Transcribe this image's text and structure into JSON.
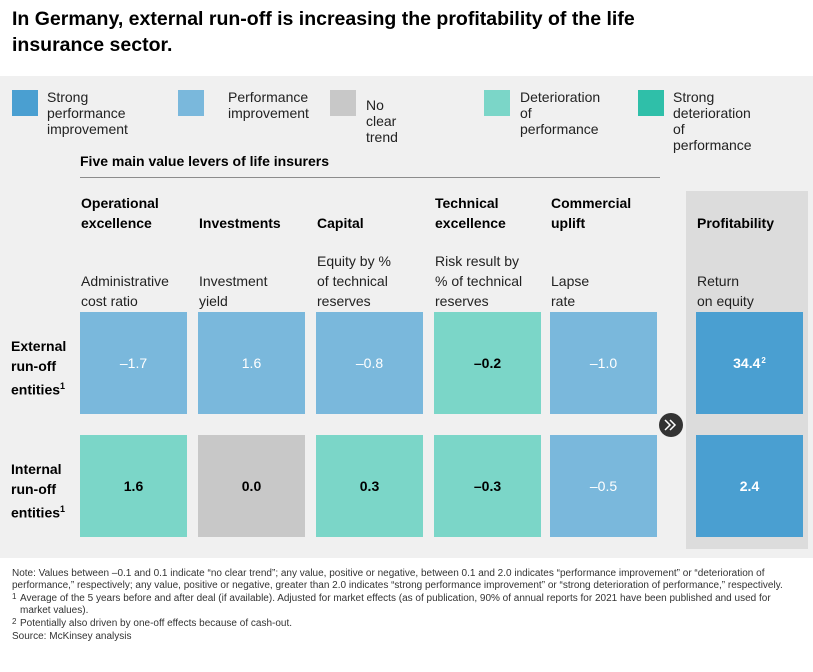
{
  "title": "In Germany, external run-off is increasing the profitability of the life insurance sector.",
  "legend": [
    {
      "label": "Strong performance\nimprovement",
      "color": "#4a9fd1"
    },
    {
      "label": "Performance\nimprovement",
      "color": "#7ab8dc"
    },
    {
      "label": "No clear trend",
      "color": "#c8c8c8"
    },
    {
      "label": "Deterioration of\nperformance",
      "color": "#7bd6c8"
    },
    {
      "label": "Strong deterioration\nof performance",
      "color": "#2fbfa9"
    }
  ],
  "levers_title": "Five main value levers of life insurers",
  "columns": [
    {
      "heading": "Operational\nexcellence",
      "metric": "Administrative\ncost ratio"
    },
    {
      "heading": "Investments",
      "metric": "Investment\nyield"
    },
    {
      "heading": "Capital",
      "metric": "Equity by %\nof technical\nreserves"
    },
    {
      "heading": "Technical\nexcellence",
      "metric": "Risk result by\n% of technical\nreserves"
    },
    {
      "heading": "Commercial\nuplift",
      "metric": "Lapse\nrate"
    },
    {
      "heading": "Profitability",
      "metric": "Return\non equity"
    }
  ],
  "rows": [
    {
      "label_lines": [
        "External",
        "run-off",
        "entities"
      ],
      "footnote": "1"
    },
    {
      "label_lines": [
        "Internal",
        "run-off",
        "entities"
      ],
      "footnote": "1"
    }
  ],
  "chart_data": {
    "type": "table",
    "title": "In Germany, external run-off is increasing the profitability of the life insurance sector.",
    "columns": [
      "Administrative cost ratio",
      "Investment yield",
      "Equity by % of technical reserves",
      "Risk result by % of technical reserves",
      "Lapse rate",
      "Return on equity"
    ],
    "rows": [
      "External run-off entities",
      "Internal run-off entities"
    ],
    "cells": [
      [
        {
          "display": "–1.7",
          "value": -1.7,
          "category": "Performance improvement",
          "color": "#7ab8dc",
          "text_color": "#ffffff",
          "bold": false
        },
        {
          "display": "1.6",
          "value": 1.6,
          "category": "Performance improvement",
          "color": "#7ab8dc",
          "text_color": "#ffffff",
          "bold": false
        },
        {
          "display": "–0.8",
          "value": -0.8,
          "category": "Performance improvement",
          "color": "#7ab8dc",
          "text_color": "#ffffff",
          "bold": false
        },
        {
          "display": "–0.2",
          "value": -0.2,
          "category": "Deterioration of performance",
          "color": "#7bd6c8",
          "text_color": "#000000",
          "bold": true
        },
        {
          "display": "–1.0",
          "value": -1.0,
          "category": "Performance improvement",
          "color": "#7ab8dc",
          "text_color": "#ffffff",
          "bold": false
        },
        {
          "display": "34.4",
          "value": 34.4,
          "footnote": "2",
          "category": "Strong performance improvement",
          "color": "#4a9fd1",
          "text_color": "#ffffff",
          "bold": true
        }
      ],
      [
        {
          "display": "1.6",
          "value": 1.6,
          "category": "Deterioration of performance",
          "color": "#7bd6c8",
          "text_color": "#000000",
          "bold": true
        },
        {
          "display": "0.0",
          "value": 0.0,
          "category": "No clear trend",
          "color": "#c8c8c8",
          "text_color": "#000000",
          "bold": true
        },
        {
          "display": "0.3",
          "value": 0.3,
          "category": "Deterioration of performance",
          "color": "#7bd6c8",
          "text_color": "#000000",
          "bold": true
        },
        {
          "display": "–0.3",
          "value": -0.3,
          "category": "Deterioration of performance",
          "color": "#7bd6c8",
          "text_color": "#000000",
          "bold": true
        },
        {
          "display": "–0.5",
          "value": -0.5,
          "category": "Performance improvement",
          "color": "#7ab8dc",
          "text_color": "#ffffff",
          "bold": false
        },
        {
          "display": "2.4",
          "value": 2.4,
          "category": "Strong performance improvement",
          "color": "#4a9fd1",
          "text_color": "#ffffff",
          "bold": true
        }
      ]
    ]
  },
  "arrow_icon": "double-chevron-right-icon",
  "notes": {
    "note": "Note: Values between –0.1 and 0.1 indicate “no clear trend”; any value, positive or negative, between 0.1 and 2.0 indicates “performance improvement” or “deterioration of performance,” respectively; any value, positive or negative, greater than 2.0 indicates “strong performance improvement” or “strong deterioration of performance,” respectively.",
    "footnote1_mark": "1",
    "footnote1": "Average of the 5 years before and after deal (if available). Adjusted for market effects (as of publication, 90% of annual reports for 2021 have been published and used for market values).",
    "footnote2_mark": "2",
    "footnote2": "Potentially also driven by one-off effects because of cash-out.",
    "source": "Source: McKinsey analysis"
  }
}
